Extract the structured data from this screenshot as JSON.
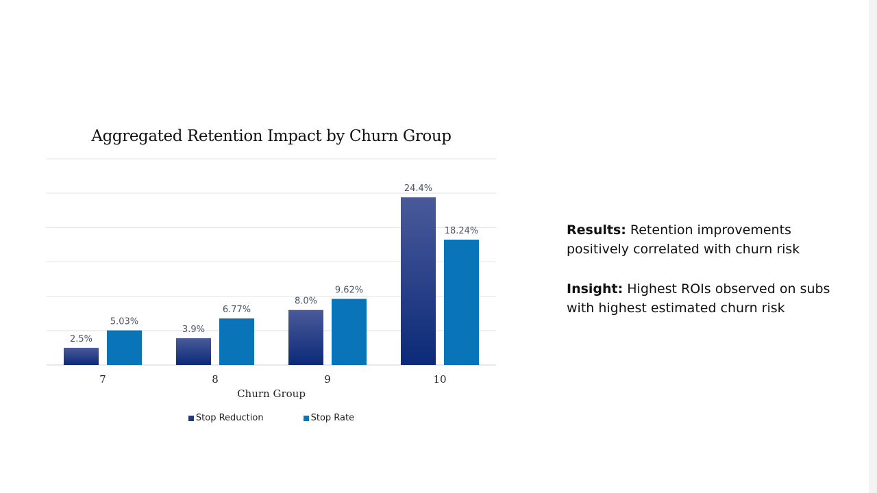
{
  "chart_data": {
    "type": "bar",
    "title": "Aggregated Retention Impact by Churn Group",
    "xlabel": "Churn Group",
    "ylabel": "",
    "categories": [
      "7",
      "8",
      "9",
      "10"
    ],
    "ylim": [
      0,
      30
    ],
    "grid": true,
    "legend_position": "bottom",
    "series": [
      {
        "name": "Stop Reduction",
        "values": [
          2.5,
          3.9,
          8.0,
          24.4
        ],
        "labels": [
          "2.5%",
          "3.9%",
          "8.0%",
          "24.4%"
        ],
        "color": "#1f3a8a",
        "gradient_top": "#4a5a9a",
        "gradient_bottom": "#0b2a78"
      },
      {
        "name": "Stop Rate",
        "values": [
          5.03,
          6.77,
          9.62,
          18.24
        ],
        "labels": [
          "5.03%",
          "6.77%",
          "9.62%",
          "18.24%"
        ],
        "color": "#0a74b8"
      }
    ]
  },
  "notes": [
    {
      "label": "Results:",
      "text": " Retention improvements positively correlated with churn risk"
    },
    {
      "label": "Insight:",
      "text": " Highest ROIs observed on subs with highest estimated churn risk"
    }
  ]
}
